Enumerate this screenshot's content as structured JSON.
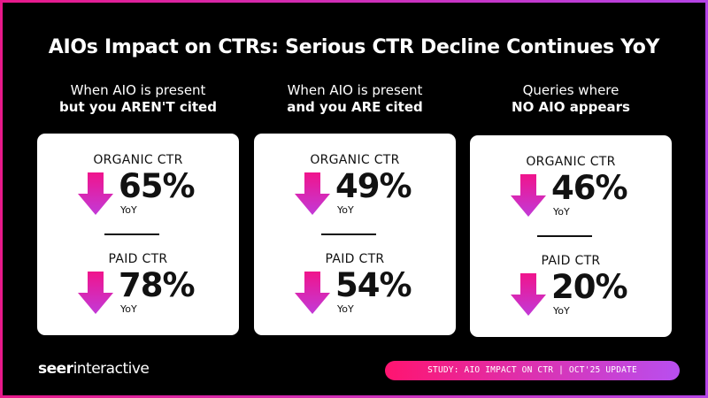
{
  "title": "AIOs Impact on CTRs: Serious CTR Decline Continues YoY",
  "columns": [
    {
      "heading_line1": "When AIO is present",
      "heading_line2": "but you AREN'T cited",
      "organic": {
        "label": "ORGANIC CTR",
        "value": "65%",
        "period": "YoY"
      },
      "paid": {
        "label": "PAID CTR",
        "value": "78%",
        "period": "YoY"
      }
    },
    {
      "heading_line1": "When AIO is present",
      "heading_line2": "and you ARE cited",
      "organic": {
        "label": "ORGANIC CTR",
        "value": "49%",
        "period": "YoY"
      },
      "paid": {
        "label": "PAID CTR",
        "value": "54%",
        "period": "YoY"
      }
    },
    {
      "heading_line1": "Queries where",
      "heading_line2": "NO AIO appears",
      "organic": {
        "label": "ORGANIC CTR",
        "value": "46%",
        "period": "YoY"
      },
      "paid": {
        "label": "PAID CTR",
        "value": "20%",
        "period": "YoY"
      }
    }
  ],
  "icons": {
    "decline": "arrow-down-icon"
  },
  "colors": {
    "arrow_top": "#f0148c",
    "arrow_bottom": "#c23ad8",
    "border_start": "#e8198a",
    "border_end": "#b544e6"
  },
  "footer": {
    "logo_bold": "seer",
    "logo_rest": "interactive",
    "badge": "STUDY: AIO IMPACT ON CTR | OCT'25 UPDATE"
  }
}
